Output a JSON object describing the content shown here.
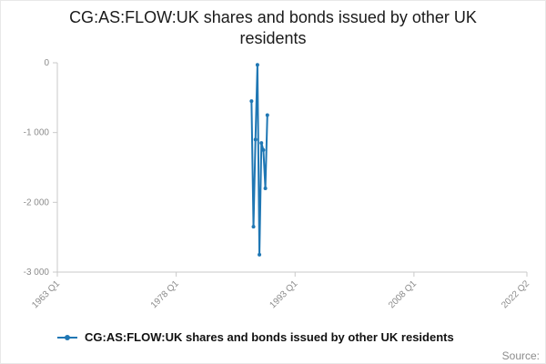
{
  "title": "CG:AS:FLOW:UK shares and bonds issued by other UK residents",
  "legend": {
    "label": "CG:AS:FLOW:UK shares and bonds issued by other UK residents"
  },
  "footer": {
    "source_label": "Source:"
  },
  "colors": {
    "series": "#1f77b4",
    "axis_line": "#c9c9c9",
    "tick_text": "#8c8c8c",
    "title_text": "#1a1a1a"
  },
  "chart_data": {
    "type": "line",
    "title": "CG:AS:FLOW:UK shares and bonds issued by other UK residents",
    "grid": false,
    "legend_position": "bottom-left",
    "x_axis": {
      "label": "",
      "tick_labels": [
        "1963 Q1",
        "1978 Q1",
        "1993 Q1",
        "2008 Q1",
        "2022 Q2"
      ],
      "tick_values": [
        1963.0,
        1978.0,
        1993.0,
        2008.0,
        2022.25
      ],
      "range": [
        1963.0,
        2022.25
      ]
    },
    "y_axis": {
      "label": "",
      "tick_labels": [
        "0",
        "-1 000",
        "-2 000",
        "-3 000"
      ],
      "tick_values": [
        0,
        -1000,
        -2000,
        -3000
      ],
      "range": [
        -3000,
        0
      ]
    },
    "series": [
      {
        "name": "CG:AS:FLOW:UK shares and bonds issued by other UK residents",
        "color": "#1f77b4",
        "points": [
          {
            "period": "1987 Q3",
            "x": 1987.5,
            "y": -550
          },
          {
            "period": "1987 Q4",
            "x": 1987.75,
            "y": -2350
          },
          {
            "period": "1988 Q1",
            "x": 1988.0,
            "y": -1100
          },
          {
            "period": "1988 Q2",
            "x": 1988.25,
            "y": -30
          },
          {
            "period": "1988 Q3",
            "x": 1988.5,
            "y": -2750
          },
          {
            "period": "1988 Q4",
            "x": 1988.75,
            "y": -1150
          },
          {
            "period": "1989 Q1",
            "x": 1989.0,
            "y": -1250
          },
          {
            "period": "1989 Q2",
            "x": 1989.25,
            "y": -1800
          },
          {
            "period": "1989 Q3",
            "x": 1989.5,
            "y": -750
          }
        ]
      }
    ]
  }
}
